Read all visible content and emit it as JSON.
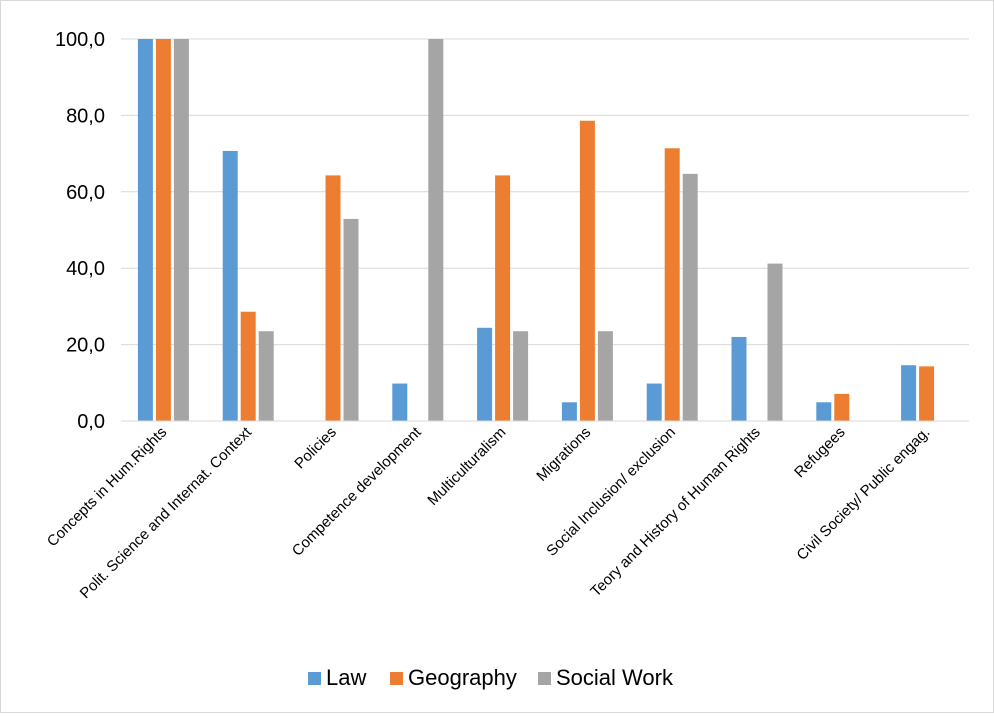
{
  "chart_data": {
    "type": "bar",
    "categories": [
      "Concepts in Hum.Rights",
      "Polit. Science and Internat. Context",
      "Policies",
      "Competence development",
      "Multiculturalism",
      "Migrations",
      "Social Inclusion/ exclusion",
      "Teory and History of Human Rights",
      "Refugees",
      "Civil Society/ Public engag."
    ],
    "series": [
      {
        "name": "Law",
        "color": "#5b9bd5",
        "values": [
          100.0,
          70.7,
          0.0,
          9.8,
          24.4,
          4.9,
          9.8,
          22.0,
          4.9,
          14.6
        ]
      },
      {
        "name": "Geography",
        "color": "#ed7d31",
        "values": [
          100.0,
          28.6,
          64.3,
          0.0,
          64.3,
          78.6,
          71.4,
          0.0,
          7.1,
          14.3
        ]
      },
      {
        "name": "Social Work",
        "color": "#a5a5a5",
        "values": [
          100.0,
          23.5,
          52.9,
          100.0,
          23.5,
          23.5,
          64.7,
          41.2,
          0.0,
          0.0
        ]
      }
    ],
    "yticks": [
      "0,0",
      "20,0",
      "40,0",
      "60,0",
      "80,0",
      "100,0"
    ],
    "ylim": [
      0,
      100
    ],
    "grid": true,
    "legend_position": "bottom"
  }
}
